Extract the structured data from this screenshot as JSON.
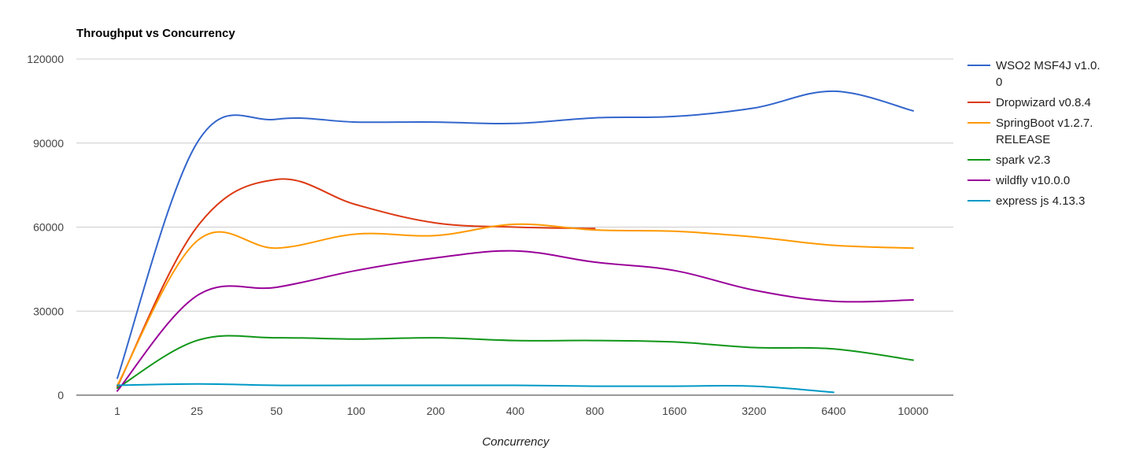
{
  "chart_data": {
    "type": "line",
    "title": "Throughput vs Concurrency",
    "xlabel": "Concurrency",
    "ylabel": "",
    "categories": [
      "1",
      "25",
      "50",
      "100",
      "200",
      "400",
      "800",
      "1600",
      "3200",
      "6400",
      "10000"
    ],
    "ylim": [
      0,
      120000
    ],
    "yticks": [
      "0",
      "30000",
      "60000",
      "90000",
      "120000"
    ],
    "grid": true,
    "legend_position": "right",
    "series": [
      {
        "name": "WSO2 MSF4J v1.0.0",
        "color": "#3366cc",
        "values": [
          6000,
          90000,
          98500,
          97500,
          97500,
          97000,
          99000,
          99500,
          102500,
          108500,
          101500
        ]
      },
      {
        "name": "Dropwizard v0.8.4",
        "color": "#dc3912",
        "values": [
          3000,
          60000,
          77000,
          68000,
          61500,
          60000,
          59500,
          null,
          null,
          null,
          null
        ]
      },
      {
        "name": "SpringBoot v1.2.7.RELEASE",
        "color": "#ff9900",
        "values": [
          3500,
          55000,
          52500,
          57500,
          57000,
          61000,
          59000,
          58500,
          56500,
          53500,
          52500
        ]
      },
      {
        "name": "spark v2.3",
        "color": "#109618",
        "values": [
          2500,
          19500,
          20500,
          20000,
          20500,
          19500,
          19500,
          19000,
          17000,
          16500,
          12500
        ]
      },
      {
        "name": "wildfly v10.0.0",
        "color": "#990099",
        "values": [
          1500,
          35500,
          38500,
          44500,
          49000,
          51500,
          47500,
          44500,
          37500,
          33500,
          34000
        ]
      },
      {
        "name": "express js 4.13.3",
        "color": "#0099c6",
        "values": [
          3500,
          4000,
          3500,
          3500,
          3500,
          3500,
          3200,
          3200,
          3200,
          1000,
          null
        ]
      }
    ]
  },
  "legend": {
    "lines": [
      [
        "WSO2 MSF4J v1.0.",
        "0"
      ],
      [
        "Dropwizard v0.8.4"
      ],
      [
        "SpringBoot v1.2.7.",
        "RELEASE"
      ],
      [
        "spark v2.3"
      ],
      [
        "wildfly v10.0.0"
      ],
      [
        "express js 4.13.3"
      ]
    ]
  }
}
